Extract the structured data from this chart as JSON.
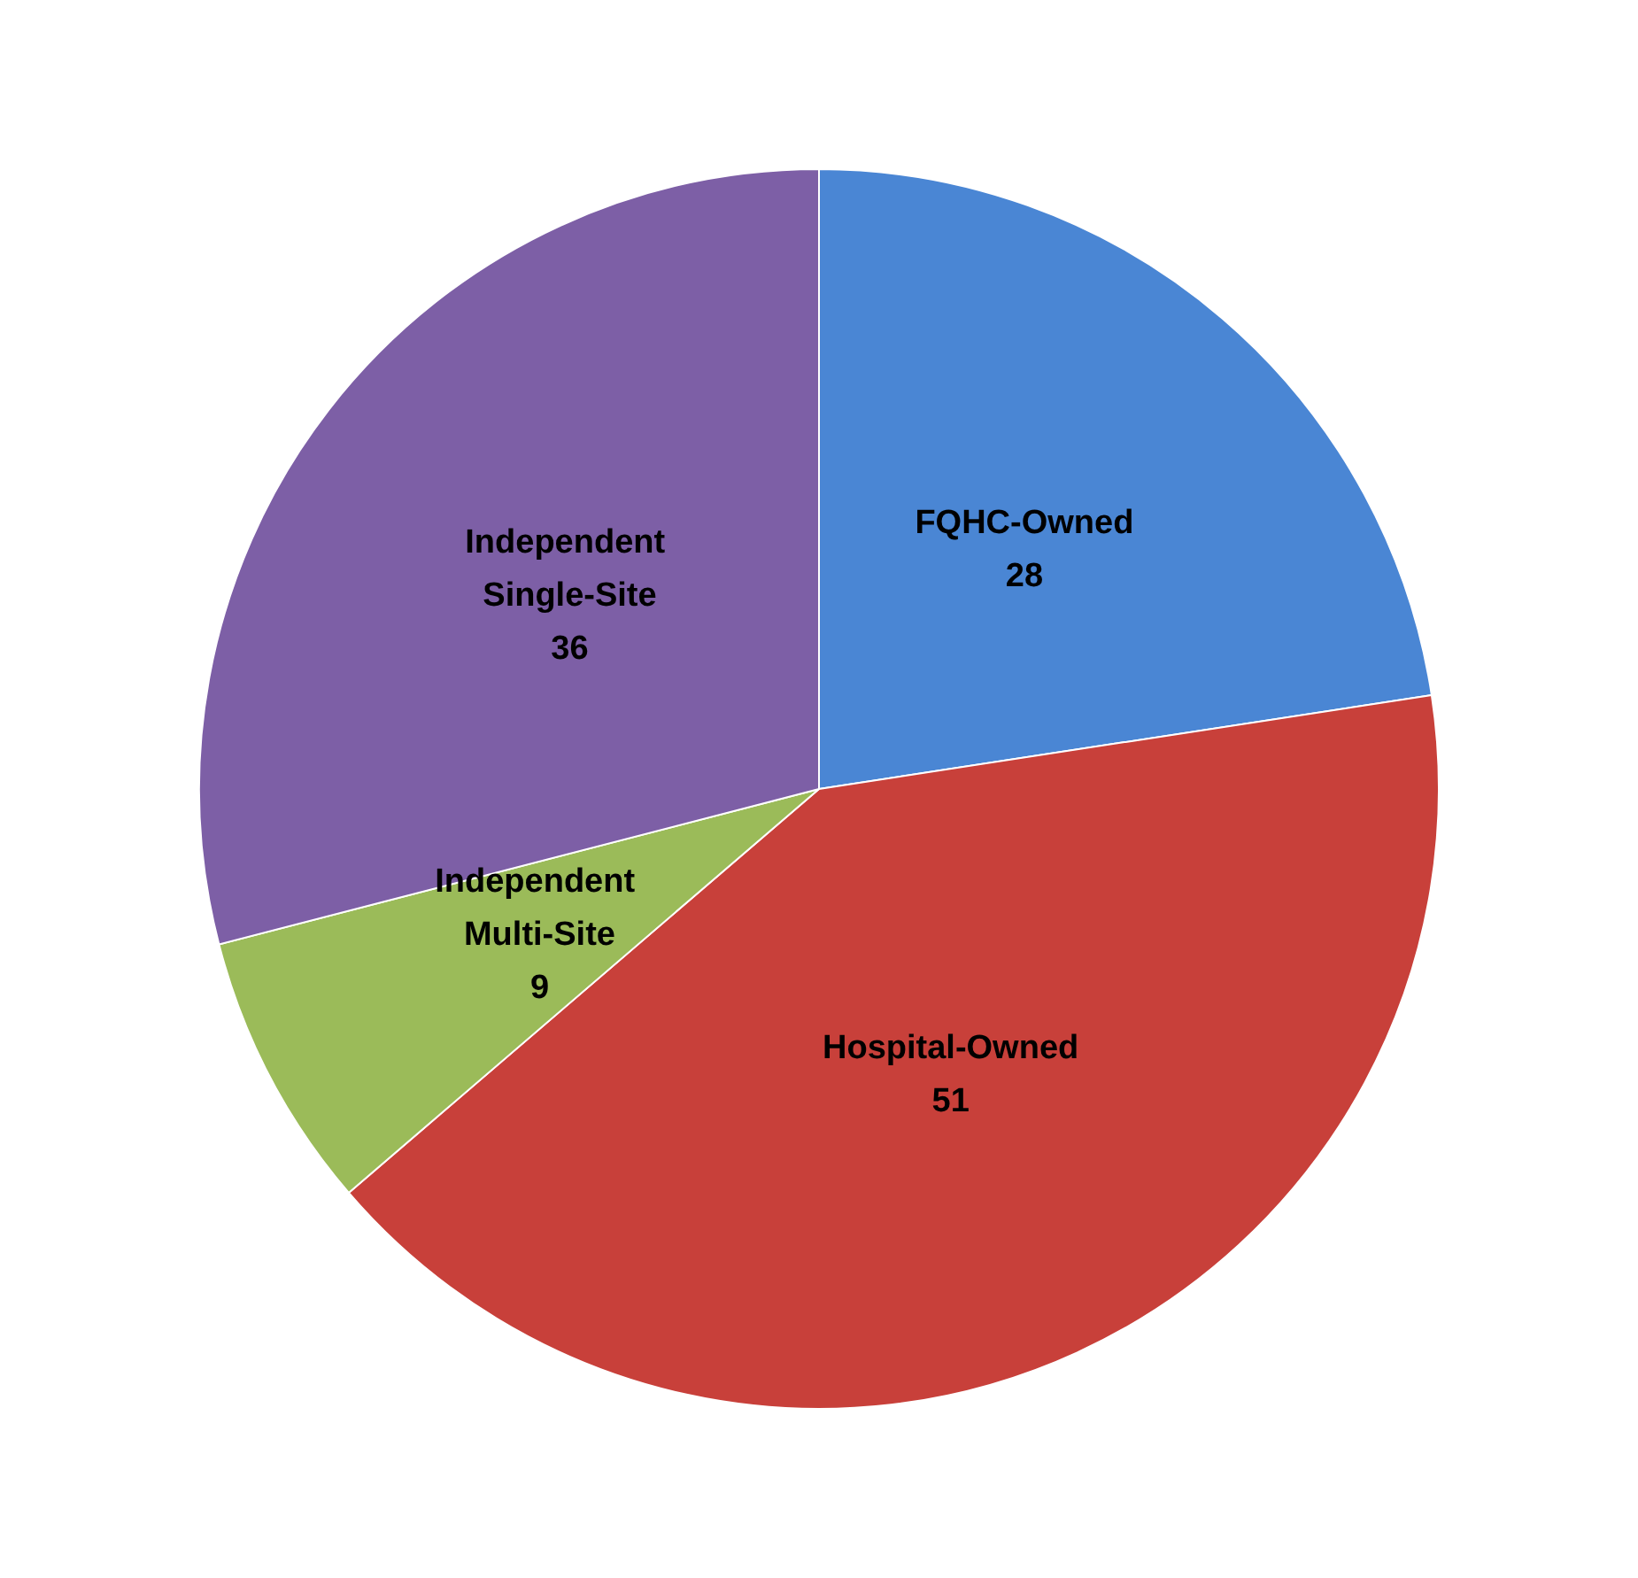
{
  "chart_data": {
    "type": "pie",
    "categories": [
      "FQHC-Owned",
      "Hospital-Owned",
      "Independent Multi-Site",
      "Independent Single-Site"
    ],
    "values": [
      28,
      51,
      9,
      36
    ],
    "colors": [
      "#4a86d4",
      "#c8403a",
      "#9bbb59",
      "#7d5fa6"
    ],
    "data_labels": true
  }
}
